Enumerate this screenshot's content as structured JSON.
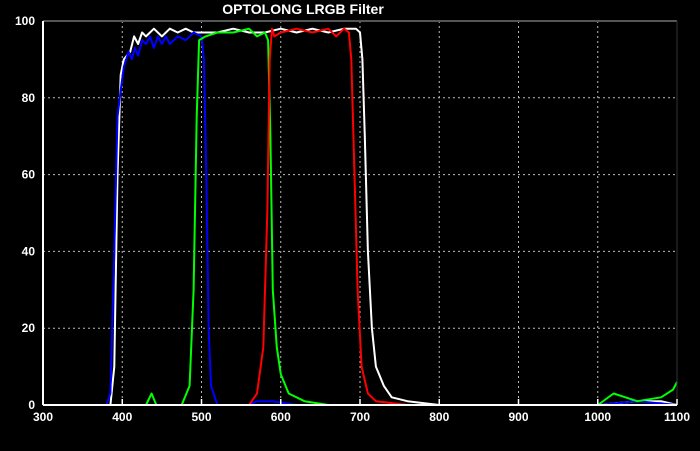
{
  "chart_data": {
    "type": "line",
    "title": "OPTOLONG LRGB Filter",
    "xlabel": "",
    "ylabel": "",
    "xlim": [
      300,
      1100
    ],
    "ylim": [
      0,
      100
    ],
    "xticks": [
      300,
      400,
      500,
      600,
      700,
      800,
      900,
      1000,
      1100
    ],
    "yticks": [
      0,
      20,
      40,
      60,
      80,
      100
    ],
    "grid": true,
    "background": "#000000",
    "series": [
      {
        "color": "#ffffff",
        "points": [
          [
            300,
            0
          ],
          [
            350,
            0
          ],
          [
            385,
            0
          ],
          [
            390,
            10
          ],
          [
            394,
            60
          ],
          [
            398,
            86
          ],
          [
            402,
            90
          ],
          [
            410,
            92
          ],
          [
            415,
            96
          ],
          [
            420,
            94
          ],
          [
            425,
            97
          ],
          [
            430,
            96
          ],
          [
            440,
            98
          ],
          [
            450,
            96
          ],
          [
            460,
            98
          ],
          [
            470,
            97
          ],
          [
            480,
            98
          ],
          [
            490,
            97
          ],
          [
            500,
            97
          ],
          [
            520,
            97
          ],
          [
            540,
            98
          ],
          [
            560,
            97
          ],
          [
            580,
            97
          ],
          [
            600,
            98
          ],
          [
            620,
            97
          ],
          [
            640,
            98
          ],
          [
            660,
            97
          ],
          [
            680,
            98
          ],
          [
            695,
            98
          ],
          [
            700,
            97
          ],
          [
            703,
            90
          ],
          [
            706,
            70
          ],
          [
            710,
            40
          ],
          [
            715,
            20
          ],
          [
            720,
            10
          ],
          [
            730,
            5
          ],
          [
            740,
            2
          ],
          [
            760,
            1
          ],
          [
            800,
            0
          ],
          [
            1000,
            0
          ],
          [
            1050,
            1
          ],
          [
            1080,
            1
          ],
          [
            1100,
            0
          ]
        ]
      },
      {
        "color": "#0000ff",
        "points": [
          [
            300,
            0
          ],
          [
            380,
            0
          ],
          [
            385,
            3
          ],
          [
            390,
            40
          ],
          [
            394,
            75
          ],
          [
            398,
            82
          ],
          [
            402,
            88
          ],
          [
            408,
            92
          ],
          [
            412,
            90
          ],
          [
            416,
            93
          ],
          [
            420,
            91
          ],
          [
            425,
            95
          ],
          [
            430,
            94
          ],
          [
            435,
            96
          ],
          [
            440,
            93
          ],
          [
            445,
            96
          ],
          [
            450,
            94
          ],
          [
            455,
            96
          ],
          [
            460,
            94
          ],
          [
            470,
            96
          ],
          [
            480,
            95
          ],
          [
            490,
            97
          ],
          [
            500,
            96
          ],
          [
            503,
            90
          ],
          [
            506,
            60
          ],
          [
            509,
            20
          ],
          [
            512,
            5
          ],
          [
            520,
            0
          ],
          [
            560,
            0
          ],
          [
            570,
            1
          ],
          [
            590,
            1
          ],
          [
            620,
            0
          ],
          [
            1000,
            0
          ],
          [
            1050,
            1
          ],
          [
            1100,
            0
          ]
        ]
      },
      {
        "color": "#00ff00",
        "points": [
          [
            300,
            0
          ],
          [
            430,
            0
          ],
          [
            437,
            3
          ],
          [
            443,
            0
          ],
          [
            475,
            0
          ],
          [
            485,
            5
          ],
          [
            490,
            30
          ],
          [
            494,
            75
          ],
          [
            497,
            95
          ],
          [
            505,
            96
          ],
          [
            520,
            97
          ],
          [
            540,
            97
          ],
          [
            560,
            98
          ],
          [
            570,
            96
          ],
          [
            580,
            97
          ],
          [
            584,
            95
          ],
          [
            587,
            70
          ],
          [
            590,
            30
          ],
          [
            595,
            15
          ],
          [
            600,
            8
          ],
          [
            610,
            3
          ],
          [
            630,
            1
          ],
          [
            660,
            0
          ],
          [
            1000,
            0
          ],
          [
            1020,
            3
          ],
          [
            1050,
            1
          ],
          [
            1080,
            2
          ],
          [
            1095,
            4
          ],
          [
            1100,
            6
          ]
        ]
      },
      {
        "color": "#ff0000",
        "points": [
          [
            300,
            0
          ],
          [
            560,
            0
          ],
          [
            570,
            3
          ],
          [
            578,
            15
          ],
          [
            583,
            50
          ],
          [
            586,
            90
          ],
          [
            589,
            98
          ],
          [
            592,
            96
          ],
          [
            600,
            97
          ],
          [
            620,
            98
          ],
          [
            640,
            97
          ],
          [
            660,
            98
          ],
          [
            670,
            96
          ],
          [
            680,
            98
          ],
          [
            686,
            97
          ],
          [
            689,
            90
          ],
          [
            693,
            60
          ],
          [
            697,
            30
          ],
          [
            702,
            10
          ],
          [
            710,
            3
          ],
          [
            720,
            1
          ],
          [
            760,
            0
          ],
          [
            1100,
            0
          ]
        ]
      }
    ]
  }
}
